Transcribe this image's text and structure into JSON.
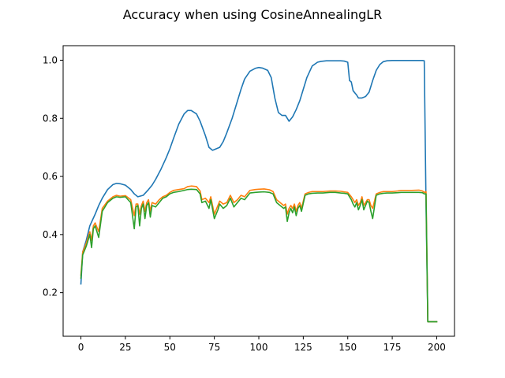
{
  "chart_data": {
    "type": "line",
    "title": "Accuracy when using CosineAnnealingLR",
    "xlabel": "",
    "ylabel": "",
    "xlim": [
      -10,
      210
    ],
    "ylim": [
      0.05,
      1.05
    ],
    "xticks": [
      0,
      25,
      50,
      75,
      100,
      125,
      150,
      175,
      200
    ],
    "xtick_labels": [
      "0",
      "25",
      "50",
      "75",
      "100",
      "125",
      "150",
      "175",
      "200"
    ],
    "yticks": [
      0.2,
      0.4,
      0.6,
      0.8,
      1.0
    ],
    "ytick_labels": [
      "0.2",
      "0.4",
      "0.6",
      "0.8",
      "1.0"
    ],
    "grid": false,
    "legend": false,
    "series": [
      {
        "color": "#1f77b4",
        "x": [
          0,
          1,
          3,
          5,
          8,
          10,
          12,
          15,
          18,
          20,
          22,
          25,
          28,
          30,
          32,
          35,
          38,
          40,
          42,
          45,
          48,
          50,
          52,
          55,
          58,
          60,
          62,
          65,
          67,
          70,
          72,
          74,
          76,
          78,
          80,
          82,
          85,
          88,
          90,
          92,
          95,
          98,
          100,
          102,
          105,
          107,
          109,
          111,
          113,
          115,
          117,
          119,
          121,
          123,
          125,
          127,
          130,
          133,
          135,
          138,
          140,
          143,
          146,
          148,
          150,
          151,
          152,
          153,
          155,
          156,
          158,
          160,
          162,
          164,
          166,
          168,
          170,
          172,
          175,
          178,
          180,
          183,
          186,
          190,
          192,
          193,
          194,
          195,
          197,
          200
        ],
        "y": [
          0.23,
          0.34,
          0.38,
          0.43,
          0.47,
          0.5,
          0.525,
          0.555,
          0.572,
          0.576,
          0.575,
          0.57,
          0.555,
          0.54,
          0.53,
          0.535,
          0.555,
          0.57,
          0.59,
          0.625,
          0.665,
          0.695,
          0.73,
          0.78,
          0.815,
          0.827,
          0.827,
          0.815,
          0.79,
          0.74,
          0.7,
          0.69,
          0.695,
          0.7,
          0.72,
          0.75,
          0.8,
          0.86,
          0.9,
          0.935,
          0.962,
          0.972,
          0.975,
          0.973,
          0.965,
          0.94,
          0.87,
          0.82,
          0.81,
          0.81,
          0.79,
          0.805,
          0.83,
          0.86,
          0.9,
          0.94,
          0.98,
          0.993,
          0.996,
          0.998,
          0.998,
          0.998,
          0.998,
          0.997,
          0.993,
          0.93,
          0.925,
          0.895,
          0.88,
          0.87,
          0.87,
          0.875,
          0.89,
          0.93,
          0.965,
          0.985,
          0.995,
          0.998,
          0.999,
          0.999,
          0.999,
          0.999,
          0.999,
          0.999,
          0.999,
          0.998,
          0.5,
          0.1,
          0.1,
          0.1
        ]
      },
      {
        "color": "#ff7f0e",
        "x": [
          0,
          1,
          3,
          5,
          6,
          7,
          8,
          10,
          12,
          15,
          18,
          20,
          22,
          25,
          28,
          30,
          31,
          32,
          33,
          34,
          35,
          36,
          37,
          38,
          39,
          40,
          42,
          44,
          46,
          48,
          50,
          52,
          55,
          58,
          60,
          62,
          65,
          67,
          68,
          70,
          72,
          73,
          75,
          77,
          78,
          80,
          82,
          84,
          86,
          88,
          90,
          92,
          95,
          98,
          100,
          103,
          106,
          108,
          110,
          112,
          114,
          115,
          116,
          117,
          118,
          119,
          120,
          121,
          122,
          123,
          124,
          126,
          128,
          130,
          133,
          136,
          140,
          143,
          146,
          148,
          150,
          152,
          153,
          154,
          155,
          156,
          157,
          158,
          159,
          160,
          161,
          162,
          163,
          164,
          166,
          168,
          170,
          172,
          175,
          178,
          180,
          183,
          186,
          190,
          192,
          193,
          194,
          195,
          197,
          200
        ],
        "y": [
          0.26,
          0.34,
          0.37,
          0.41,
          0.38,
          0.43,
          0.44,
          0.41,
          0.49,
          0.515,
          0.53,
          0.535,
          0.532,
          0.534,
          0.52,
          0.465,
          0.505,
          0.505,
          0.47,
          0.5,
          0.515,
          0.48,
          0.51,
          0.52,
          0.48,
          0.51,
          0.505,
          0.52,
          0.53,
          0.535,
          0.545,
          0.552,
          0.555,
          0.558,
          0.565,
          0.567,
          0.565,
          0.55,
          0.52,
          0.525,
          0.51,
          0.53,
          0.47,
          0.5,
          0.515,
          0.505,
          0.51,
          0.535,
          0.51,
          0.52,
          0.535,
          0.53,
          0.552,
          0.555,
          0.556,
          0.557,
          0.554,
          0.548,
          0.52,
          0.51,
          0.5,
          0.505,
          0.47,
          0.49,
          0.5,
          0.49,
          0.505,
          0.48,
          0.5,
          0.51,
          0.49,
          0.54,
          0.545,
          0.548,
          0.548,
          0.548,
          0.55,
          0.55,
          0.549,
          0.547,
          0.545,
          0.53,
          0.52,
          0.51,
          0.52,
          0.5,
          0.51,
          0.53,
          0.5,
          0.51,
          0.52,
          0.52,
          0.5,
          0.49,
          0.54,
          0.545,
          0.548,
          0.548,
          0.548,
          0.55,
          0.552,
          0.552,
          0.552,
          0.553,
          0.55,
          0.545,
          0.548,
          0.1,
          0.1,
          0.1
        ]
      },
      {
        "color": "#2ca02c",
        "x": [
          0,
          1,
          3,
          5,
          6,
          7,
          8,
          10,
          12,
          15,
          18,
          20,
          22,
          25,
          28,
          30,
          31,
          32,
          33,
          34,
          35,
          36,
          37,
          38,
          39,
          40,
          42,
          44,
          46,
          48,
          50,
          52,
          55,
          58,
          60,
          62,
          65,
          67,
          68,
          70,
          72,
          73,
          75,
          77,
          78,
          80,
          82,
          84,
          86,
          88,
          90,
          92,
          95,
          98,
          100,
          103,
          106,
          108,
          110,
          112,
          114,
          115,
          116,
          117,
          118,
          119,
          120,
          121,
          122,
          123,
          124,
          126,
          128,
          130,
          133,
          136,
          140,
          143,
          146,
          148,
          150,
          152,
          153,
          154,
          155,
          156,
          157,
          158,
          159,
          160,
          161,
          162,
          163,
          164,
          166,
          168,
          170,
          172,
          175,
          178,
          180,
          183,
          186,
          190,
          192,
          193,
          194,
          195,
          197,
          200
        ],
        "y": [
          0.25,
          0.33,
          0.36,
          0.4,
          0.355,
          0.42,
          0.43,
          0.39,
          0.48,
          0.51,
          0.525,
          0.53,
          0.528,
          0.53,
          0.51,
          0.42,
          0.495,
          0.5,
          0.43,
          0.49,
          0.505,
          0.455,
          0.5,
          0.51,
          0.46,
          0.5,
          0.495,
          0.51,
          0.525,
          0.53,
          0.54,
          0.545,
          0.548,
          0.552,
          0.555,
          0.556,
          0.555,
          0.54,
          0.51,
          0.515,
          0.49,
          0.52,
          0.455,
          0.485,
          0.505,
          0.49,
          0.5,
          0.525,
          0.495,
          0.51,
          0.525,
          0.52,
          0.543,
          0.545,
          0.546,
          0.547,
          0.545,
          0.54,
          0.51,
          0.5,
          0.49,
          0.495,
          0.445,
          0.475,
          0.49,
          0.475,
          0.495,
          0.465,
          0.49,
          0.5,
          0.48,
          0.535,
          0.54,
          0.542,
          0.543,
          0.543,
          0.545,
          0.545,
          0.543,
          0.542,
          0.54,
          0.52,
          0.505,
          0.495,
          0.51,
          0.485,
          0.5,
          0.52,
          0.485,
          0.5,
          0.515,
          0.51,
          0.48,
          0.455,
          0.535,
          0.54,
          0.542,
          0.543,
          0.543,
          0.544,
          0.545,
          0.545,
          0.545,
          0.545,
          0.544,
          0.54,
          0.54,
          0.1,
          0.1,
          0.1
        ]
      }
    ]
  }
}
